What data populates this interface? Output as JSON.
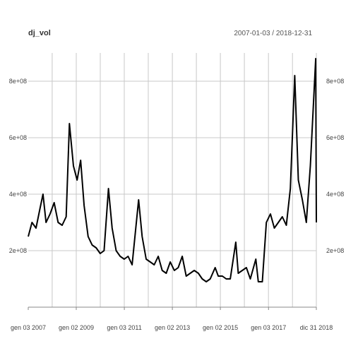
{
  "title": "dj_vol",
  "date_range": "2007-01-03 / 2018-12-31",
  "colors": {
    "line": "#000000",
    "grid": "#c8c8c8",
    "axis": "#888888",
    "text": "#444444"
  },
  "chart_data": {
    "type": "line",
    "title": "dj_vol",
    "subtitle": "2007-01-03 / 2018-12-31",
    "xlim": [
      "2007-01-03",
      "2018-12-31"
    ],
    "ylim": [
      0,
      900000000
    ],
    "grid": true,
    "y_ticks": [
      {
        "value": 200000000,
        "label": "2e+08"
      },
      {
        "value": 400000000,
        "label": "4e+08"
      },
      {
        "value": 600000000,
        "label": "6e+08"
      },
      {
        "value": 800000000,
        "label": "8e+08"
      }
    ],
    "x_ticks": [
      {
        "date": "2007-01-03",
        "label": "gen 03 2007"
      },
      {
        "date": "2009-01-02",
        "label": "gen 02 2009"
      },
      {
        "date": "2011-01-03",
        "label": "gen 03 2011"
      },
      {
        "date": "2013-01-02",
        "label": "gen 02 2013"
      },
      {
        "date": "2015-01-02",
        "label": "gen 02 2015"
      },
      {
        "date": "2017-01-03",
        "label": "gen 03 2017"
      },
      {
        "date": "2018-12-31",
        "label": "dic 31 2018"
      }
    ],
    "series": [
      {
        "x": [
          "2007-01-03",
          "2007-03-01",
          "2007-05-01",
          "2007-07-01",
          "2007-08-15",
          "2007-10-01",
          "2007-12-01",
          "2008-02-01",
          "2008-04-01",
          "2008-06-01",
          "2008-08-01",
          "2008-09-20",
          "2008-10-10",
          "2008-11-20",
          "2009-01-15",
          "2009-03-10",
          "2009-05-01",
          "2009-07-01",
          "2009-09-01",
          "2009-11-01",
          "2010-01-01",
          "2010-03-01",
          "2010-05-06",
          "2010-07-01",
          "2010-09-01",
          "2010-11-01",
          "2011-01-01",
          "2011-03-01",
          "2011-05-01",
          "2011-08-08",
          "2011-10-01",
          "2011-12-01",
          "2012-02-01",
          "2012-04-01",
          "2012-06-01",
          "2012-08-01",
          "2012-10-01",
          "2012-12-01",
          "2013-02-01",
          "2013-04-01",
          "2013-06-01",
          "2013-08-01",
          "2013-10-01",
          "2013-12-01",
          "2014-02-01",
          "2014-04-01",
          "2014-06-01",
          "2014-08-01",
          "2014-10-15",
          "2014-12-01",
          "2015-02-01",
          "2015-04-01",
          "2015-06-01",
          "2015-08-24",
          "2015-10-01",
          "2015-12-01",
          "2016-02-01",
          "2016-04-01",
          "2016-06-24",
          "2016-08-01",
          "2016-10-01",
          "2016-12-01",
          "2017-02-01",
          "2017-04-01",
          "2017-06-01",
          "2017-08-01",
          "2017-10-01",
          "2017-12-01",
          "2018-02-06",
          "2018-04-01",
          "2018-06-01",
          "2018-08-01",
          "2018-10-01",
          "2018-12-21",
          "2018-12-31"
        ],
        "values": [
          250000000,
          300000000,
          280000000,
          350000000,
          400000000,
          300000000,
          330000000,
          370000000,
          300000000,
          290000000,
          320000000,
          650000000,
          600000000,
          500000000,
          450000000,
          520000000,
          360000000,
          250000000,
          220000000,
          210000000,
          190000000,
          200000000,
          420000000,
          280000000,
          200000000,
          180000000,
          170000000,
          180000000,
          150000000,
          380000000,
          250000000,
          170000000,
          160000000,
          150000000,
          180000000,
          130000000,
          120000000,
          160000000,
          130000000,
          140000000,
          180000000,
          110000000,
          120000000,
          130000000,
          120000000,
          100000000,
          90000000,
          100000000,
          140000000,
          110000000,
          110000000,
          100000000,
          100000000,
          230000000,
          120000000,
          130000000,
          140000000,
          100000000,
          170000000,
          90000000,
          90000000,
          300000000,
          330000000,
          280000000,
          300000000,
          320000000,
          290000000,
          420000000,
          820000000,
          450000000,
          380000000,
          300000000,
          500000000,
          880000000,
          300000000
        ]
      }
    ]
  }
}
